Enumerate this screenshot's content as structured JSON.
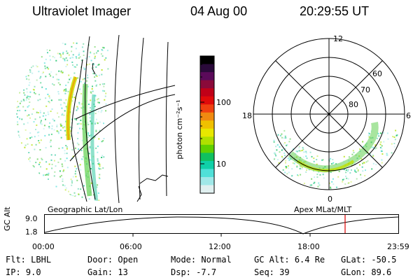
{
  "header": {
    "instrument": "Ultraviolet Imager",
    "date": "04 Aug 00",
    "time": "20:29:55 UT"
  },
  "colorbar": {
    "unit_label": "photon cm⁻²s⁻¹",
    "ticks": [
      "100",
      "10"
    ],
    "colors": [
      "#000000",
      "#2a0a3a",
      "#5a0a5a",
      "#8a0a3a",
      "#c00018",
      "#e00a0a",
      "#f04010",
      "#f08a10",
      "#f0c000",
      "#e8e800",
      "#b0e000",
      "#60d000",
      "#10c060",
      "#10d0a8",
      "#50e0d8",
      "#a0e8e8",
      "#e0f0f0"
    ]
  },
  "polar_plot": {
    "mlt_labels": [
      "12",
      "18",
      "6",
      "0"
    ],
    "mlat_labels": [
      "60",
      "70",
      "80"
    ]
  },
  "timeline": {
    "left_label": "Geographic Lat/Lon",
    "right_label": "Apex MLat/MLT",
    "y_axis_label": "GC Alt",
    "y_ticks": [
      "9.0",
      "1.8"
    ],
    "x_ticks": [
      "00:00",
      "06:00",
      "12:00",
      "18:00",
      "23:59"
    ],
    "marker_color": "#dd0000"
  },
  "info": {
    "row1": [
      {
        "label": "Flt:",
        "value": "LBHL"
      },
      {
        "label": "Door:",
        "value": "Open"
      },
      {
        "label": "Mode:",
        "value": "Normal"
      },
      {
        "label": "GC Alt:",
        "value": "6.4 Re"
      },
      {
        "label": "GLat:",
        "value": "-50.5"
      }
    ],
    "row2": [
      {
        "label": "IP:",
        "value": "9.0"
      },
      {
        "label": "Gain:",
        "value": "13"
      },
      {
        "label": "Dsp:",
        "value": "-7.7"
      },
      {
        "label": "Seq:",
        "value": "39"
      },
      {
        "label": "GLon:",
        "value": "89.6"
      }
    ]
  }
}
